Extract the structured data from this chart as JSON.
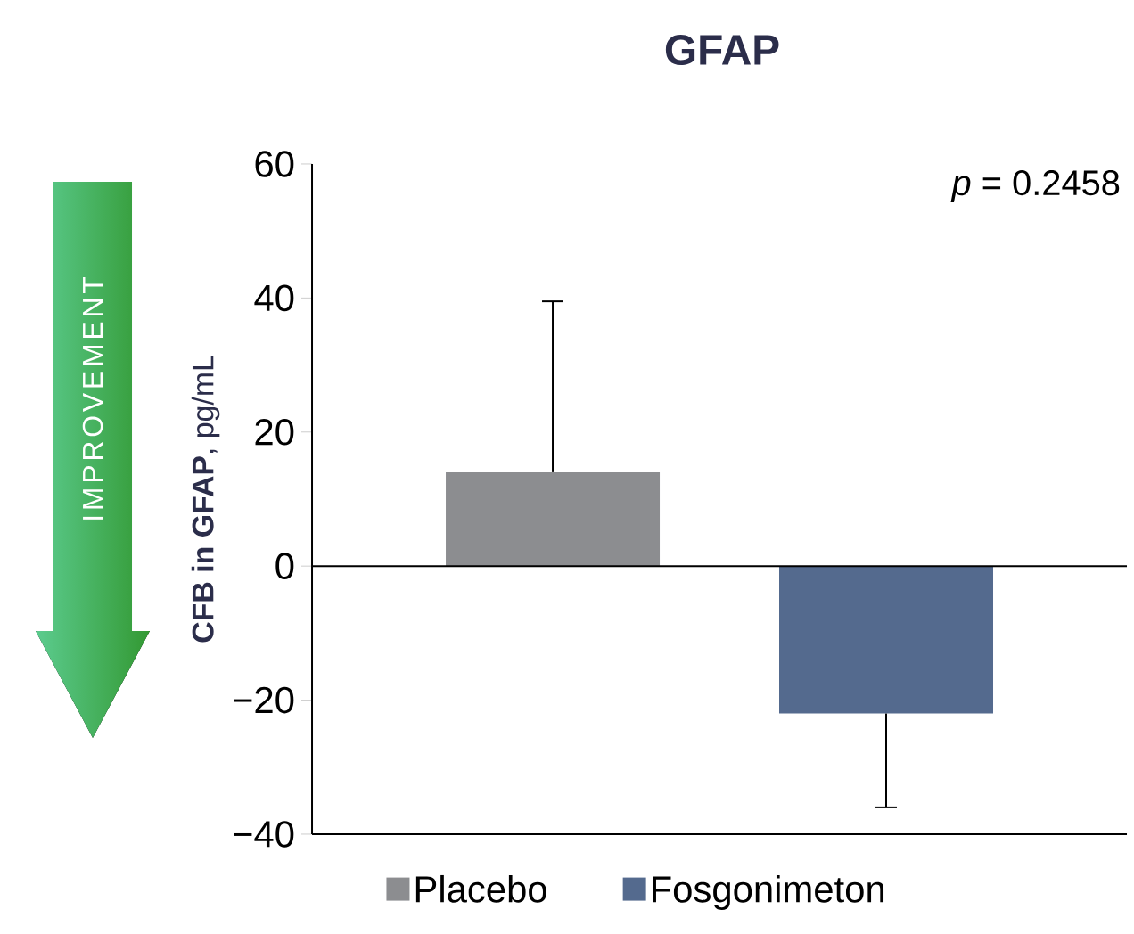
{
  "chart_data": {
    "type": "bar",
    "title": "GFAP",
    "ylabel": "**CFB in GFAP**, pg/mL",
    "categories": [
      null,
      null
    ],
    "series": [
      {
        "name": "Placebo",
        "color": "#8c8d90",
        "values": [
          14,
          null
        ],
        "errors": [
          [
            14,
            39.5
          ],
          null
        ]
      },
      {
        "name": "Fosgonimeton",
        "color": "#546a8e",
        "values": [
          null,
          -22
        ],
        "errors": [
          null,
          [
            -36,
            -22
          ]
        ]
      }
    ],
    "ylim": [
      -40,
      60
    ],
    "yticks": [
      {
        "value": -40,
        "label": "−40"
      },
      {
        "value": -20,
        "label": "−20"
      },
      0,
      20,
      40,
      60
    ],
    "annotations": [
      "*p* = 0.2458",
      "IMPROVEMENT"
    ],
    "legend": "bottom"
  }
}
